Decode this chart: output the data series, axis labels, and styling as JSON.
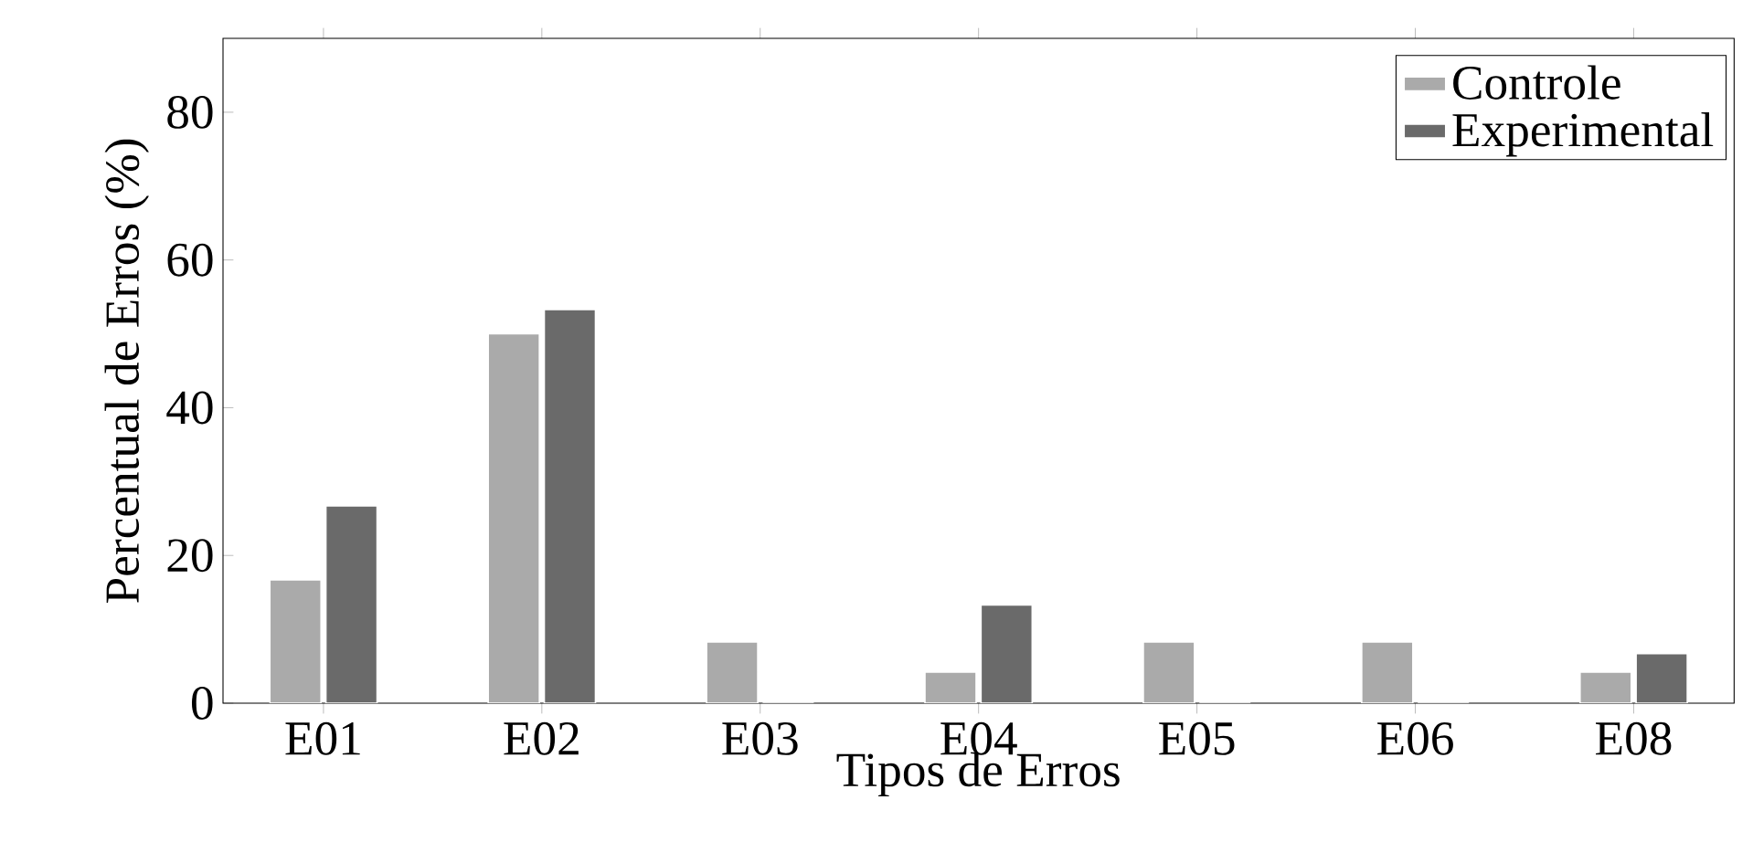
{
  "chart_data": {
    "type": "bar",
    "xlabel": "Tipos de Erros",
    "ylabel": "Percentual de Erros (%)",
    "categories": [
      "E01",
      "E02",
      "E03",
      "E04",
      "E05",
      "E06",
      "E08"
    ],
    "series": [
      {
        "name": "Controle",
        "color": "#aaaaaa",
        "values": [
          16.7,
          50,
          8.3,
          4.2,
          8.3,
          8.3,
          4.2
        ]
      },
      {
        "name": "Experimental",
        "color": "#6a6a6a",
        "values": [
          26.7,
          53.3,
          0,
          13.3,
          0,
          0,
          6.7
        ]
      }
    ],
    "ylim": [
      0,
      90
    ],
    "yticks": [
      0,
      20,
      40,
      60,
      80
    ],
    "legend": "top right"
  }
}
